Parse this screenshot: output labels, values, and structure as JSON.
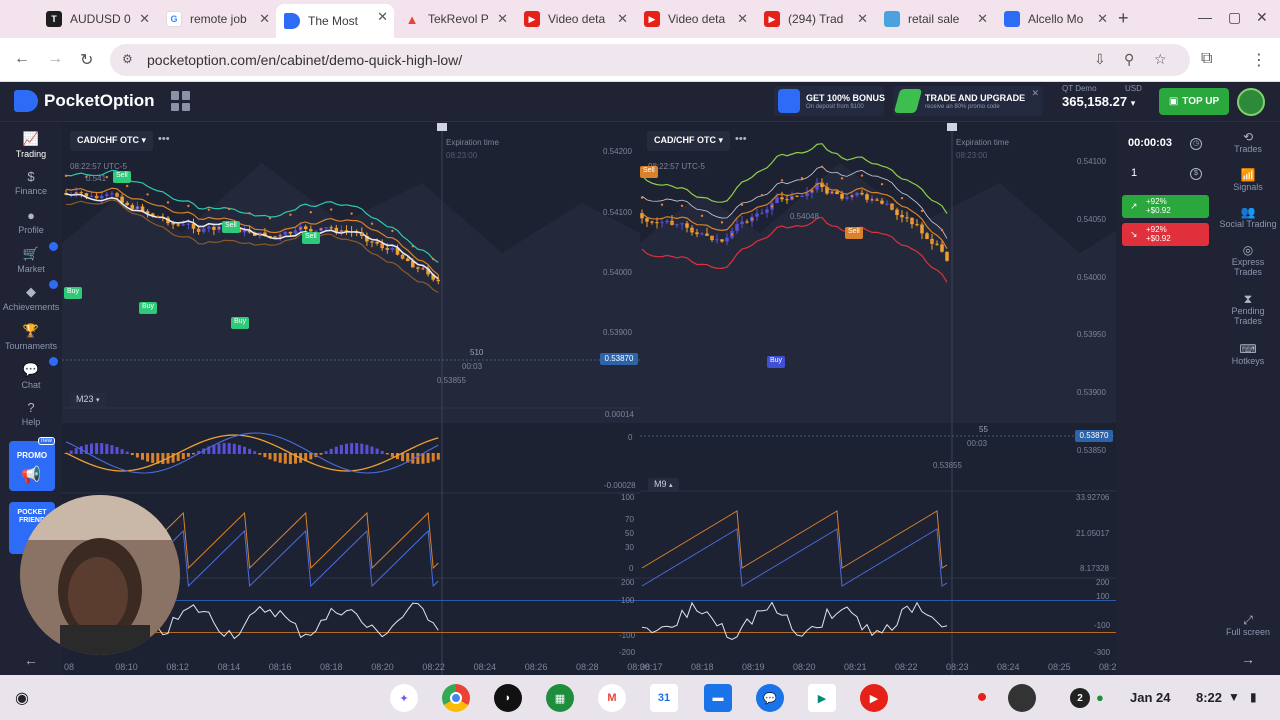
{
  "browser": {
    "tabs": [
      {
        "title": "AUDUSD 0",
        "fav": "T",
        "color": "#1e1e1e"
      },
      {
        "title": "remote job",
        "fav": "G",
        "color": "#4285f4"
      },
      {
        "title": "The Most",
        "fav": "",
        "color": "#2d6cf6",
        "active": true
      },
      {
        "title": "TekRevol P",
        "fav": "",
        "color": "#e8453c"
      },
      {
        "title": "Video deta",
        "fav": "",
        "color": "#e62117"
      },
      {
        "title": "Video deta",
        "fav": "",
        "color": "#e62117"
      },
      {
        "title": "(294) Trad",
        "fav": "",
        "color": "#e62117"
      },
      {
        "title": "retail sale",
        "fav": "",
        "color": "#4aa3df"
      },
      {
        "title": "Alcello Mo",
        "fav": "",
        "color": "#2d6cf6"
      }
    ],
    "url": "pocketoption.com/en/cabinet/demo-quick-high-low/"
  },
  "header": {
    "brand": "PocketOption",
    "promo_bonus_title": "GET 100% BONUS",
    "promo_bonus_sub": "On deposit from $100",
    "promo_trade_title": "TRADE AND UPGRADE",
    "promo_trade_sub": "receive an 80% promo code",
    "account_label": "QT Demo",
    "currency": "USD",
    "balance": "365,158.27",
    "topup": "TOP UP"
  },
  "sidebar": {
    "items": [
      {
        "label": "Trading",
        "icon": "chart-icon"
      },
      {
        "label": "Finance",
        "icon": "dollar-icon"
      },
      {
        "label": "Profile",
        "icon": "user-icon"
      },
      {
        "label": "Market",
        "icon": "cart-icon"
      },
      {
        "label": "Achievements",
        "icon": "diamond-icon"
      },
      {
        "label": "Tournaments",
        "icon": "trophy-icon"
      },
      {
        "label": "Chat",
        "icon": "chat-icon"
      },
      {
        "label": "Help",
        "icon": "help-icon"
      }
    ],
    "promo": "PROMO",
    "promo_new": "new",
    "friend": "POCKET FRIEND"
  },
  "chart_left": {
    "pair": "CAD/CHF OTC",
    "time": "08:22:57 UTC-5",
    "expiration_label": "Expiration time",
    "expiration_time": "08:23:00",
    "price_now": "0.53870",
    "prices": [
      "0.54200",
      "0.54100",
      "0.54000",
      "0.53900",
      "0.53855"
    ],
    "timeframe": "M23",
    "countdown_top": "510",
    "countdown_bottom": "00:03",
    "osc_values": [
      "0.00014",
      "0",
      "-0.00028"
    ],
    "x_ticks": [
      "08",
      "08:10",
      "08:12",
      "08:14",
      "08:16",
      "08:18",
      "08:20",
      "08:22",
      "08:24",
      "08:26",
      "08:28",
      "08:30"
    ],
    "signals": [
      "Sell",
      "Sell",
      "Sell",
      "Buy",
      "Buy",
      "Buy"
    ],
    "top_price_label": "0.541"
  },
  "chart_right": {
    "pair": "CAD/CHF OTC",
    "time": "08:22:57 UTC-5",
    "expiration_label": "Expiration time",
    "expiration_time": "08:23:00",
    "price_now": "0.53870",
    "peak_label": "0.54048",
    "low_label": "0.53855",
    "prices": [
      "0.54100",
      "0.54050",
      "0.54000",
      "0.53950",
      "0.53900",
      "0.53850"
    ],
    "timeframe": "M9",
    "countdown_top": "55",
    "countdown_bottom": "00:03",
    "stoch_levels": [
      "100",
      "70",
      "50",
      "30",
      "0"
    ],
    "stoch_right": [
      "33.92706",
      "21.05017",
      "8.17328"
    ],
    "cci_left": [
      "200",
      "100",
      "-100",
      "-200"
    ],
    "cci_right": [
      "200",
      "100",
      "-100",
      "-300"
    ],
    "x_ticks": [
      "08:17",
      "08:18",
      "08:19",
      "08:20",
      "08:21",
      "08:22",
      "08:23",
      "08:24",
      "08:25",
      "08:26"
    ],
    "signals": [
      "Sell",
      "Sell",
      "Buy"
    ]
  },
  "trade_panel": {
    "timer": "00:00:03",
    "amount": "1",
    "higher_pct": "+92%",
    "higher_amt": "+$0.92",
    "lower_pct": "+92%",
    "lower_amt": "+$0.92"
  },
  "right_nav": [
    {
      "label": "Trades",
      "icon": "history-icon"
    },
    {
      "label": "Signals",
      "icon": "signal-icon"
    },
    {
      "label": "Social Trading",
      "icon": "people-icon"
    },
    {
      "label": "Express Trades",
      "icon": "express-icon"
    },
    {
      "label": "Pending Trades",
      "icon": "hourglass-icon"
    },
    {
      "label": "Hotkeys",
      "icon": "keyboard-icon"
    },
    {
      "label": "Full screen",
      "icon": "fullscreen-icon"
    }
  ],
  "taskbar": {
    "notif_count": "2",
    "date": "Jan 24",
    "time": "8:22"
  }
}
